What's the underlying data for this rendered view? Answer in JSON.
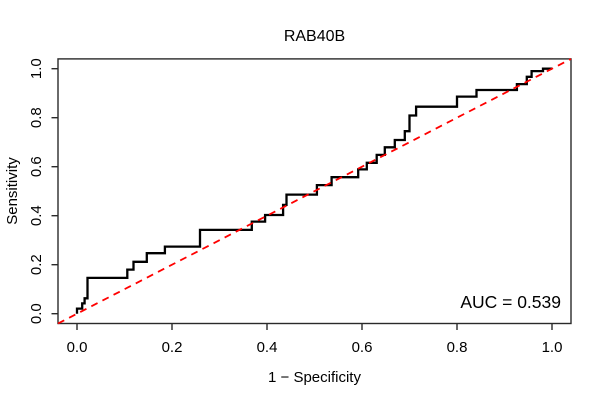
{
  "figure": {
    "title": "RAB40B",
    "xlabel": "1 − Specificity",
    "ylabel": "Sensitivity",
    "auc_label": "AUC = 0.539"
  },
  "chart_data": {
    "type": "line",
    "subtype": "roc_step_curve",
    "title": "RAB40B",
    "xlabel": "1 − Specificity",
    "ylabel": "Sensitivity",
    "xlim": [
      -0.04,
      1.04
    ],
    "ylim": [
      -0.04,
      1.04
    ],
    "grid": false,
    "legend": "none",
    "x_ticks": {
      "values": [
        0.0,
        0.2,
        0.4,
        0.6,
        0.8,
        1.0
      ],
      "labels": [
        "0.0",
        "0.2",
        "0.4",
        "0.6",
        "0.8",
        "1.0"
      ]
    },
    "y_ticks": {
      "values": [
        0.0,
        0.2,
        0.4,
        0.6,
        0.8,
        1.0
      ],
      "labels": [
        "0.0",
        "0.2",
        "0.4",
        "0.6",
        "0.8",
        "1.0"
      ]
    },
    "annotation": {
      "text": "AUC = 0.539",
      "auc": 0.539,
      "position": "bottom-right"
    },
    "colors": {
      "roc_curve": "#000000",
      "chance_line": "#ff0000",
      "box": "#2a2a2a"
    },
    "series": [
      {
        "name": "ROC curve",
        "color": "#000000",
        "style": "solid",
        "step": true,
        "points": [
          [
            0,
            0
          ],
          [
            0,
            0.021
          ],
          [
            0.011,
            0.021
          ],
          [
            0.011,
            0.042
          ],
          [
            0.016,
            0.042
          ],
          [
            0.016,
            0.063
          ],
          [
            0.022,
            0.063
          ],
          [
            0.022,
            0.146
          ],
          [
            0.106,
            0.146
          ],
          [
            0.106,
            0.18
          ],
          [
            0.119,
            0.18
          ],
          [
            0.119,
            0.212
          ],
          [
            0.147,
            0.212
          ],
          [
            0.147,
            0.247
          ],
          [
            0.185,
            0.247
          ],
          [
            0.185,
            0.274
          ],
          [
            0.259,
            0.274
          ],
          [
            0.259,
            0.342
          ],
          [
            0.368,
            0.342
          ],
          [
            0.368,
            0.376
          ],
          [
            0.396,
            0.376
          ],
          [
            0.396,
            0.403
          ],
          [
            0.434,
            0.403
          ],
          [
            0.434,
            0.444
          ],
          [
            0.441,
            0.444
          ],
          [
            0.441,
            0.486
          ],
          [
            0.505,
            0.486
          ],
          [
            0.505,
            0.525
          ],
          [
            0.536,
            0.525
          ],
          [
            0.536,
            0.557
          ],
          [
            0.592,
            0.557
          ],
          [
            0.592,
            0.589
          ],
          [
            0.61,
            0.589
          ],
          [
            0.61,
            0.616
          ],
          [
            0.631,
            0.616
          ],
          [
            0.631,
            0.648
          ],
          [
            0.648,
            0.648
          ],
          [
            0.648,
            0.679
          ],
          [
            0.669,
            0.679
          ],
          [
            0.669,
            0.709
          ],
          [
            0.69,
            0.709
          ],
          [
            0.69,
            0.745
          ],
          [
            0.7,
            0.745
          ],
          [
            0.7,
            0.809
          ],
          [
            0.714,
            0.809
          ],
          [
            0.714,
            0.845
          ],
          [
            0.8,
            0.845
          ],
          [
            0.8,
            0.886
          ],
          [
            0.841,
            0.886
          ],
          [
            0.841,
            0.913
          ],
          [
            0.926,
            0.913
          ],
          [
            0.926,
            0.937
          ],
          [
            0.947,
            0.937
          ],
          [
            0.947,
            0.967
          ],
          [
            0.957,
            0.967
          ],
          [
            0.957,
            0.99
          ],
          [
            0.981,
            0.99
          ],
          [
            0.981,
            1
          ],
          [
            1,
            1
          ]
        ]
      },
      {
        "name": "chance diagonal",
        "color": "#ff0000",
        "style": "dashed",
        "step": false,
        "points": [
          [
            -0.04,
            -0.04
          ],
          [
            1.04,
            1.04
          ]
        ]
      }
    ]
  }
}
